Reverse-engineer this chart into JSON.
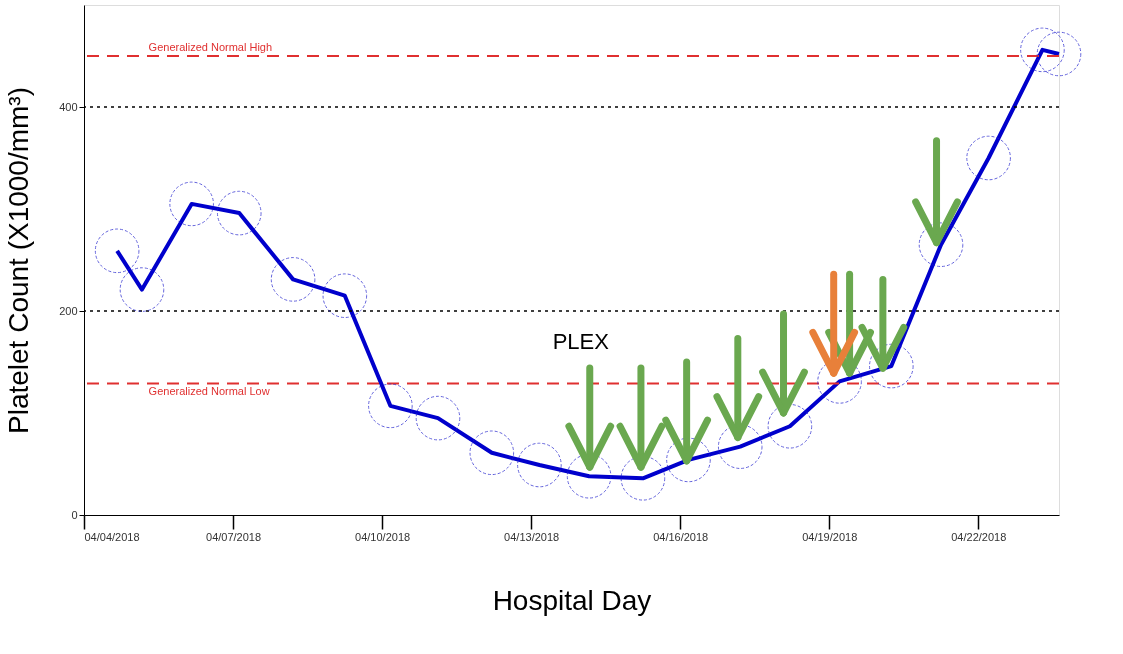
{
  "chart_data": {
    "type": "line",
    "xlabel": "Hospital Day",
    "ylabel": "Platelet Count (X1000/mm³)",
    "x": [
      "2018-04-04T16:00",
      "2018-04-05T04:00",
      "2018-04-06T04:00",
      "2018-04-07T03:00",
      "2018-04-08T05:00",
      "2018-04-09T06:00",
      "2018-04-10T04:00",
      "2018-04-11T03:00",
      "2018-04-12T05:00",
      "2018-04-13T04:00",
      "2018-04-14T04:00",
      "2018-04-15T06:00",
      "2018-04-16T04:00",
      "2018-04-17T05:00",
      "2018-04-18T05:00",
      "2018-04-19T05:00",
      "2018-04-20T06:00",
      "2018-04-21T06:00",
      "2018-04-22T05:00",
      "2018-04-23T07:00",
      "2018-04-23T15:00"
    ],
    "series": [
      {
        "color": "#0000cc",
        "values": [
          259,
          221,
          305,
          296,
          231,
          215,
          107,
          95,
          61,
          49,
          38,
          36,
          54,
          67,
          87,
          131,
          146,
          265,
          350,
          456,
          452
        ]
      }
    ],
    "marker": "circle",
    "xlim": [
      "2018-04-04",
      "2018-04-23T15:00"
    ],
    "xticks": [
      {
        "value": "2018-04-04",
        "label": "04/04/2018"
      },
      {
        "value": "2018-04-07",
        "label": "04/07/2018"
      },
      {
        "value": "2018-04-10",
        "label": "04/10/2018"
      },
      {
        "value": "2018-04-13",
        "label": "04/13/2018"
      },
      {
        "value": "2018-04-16",
        "label": "04/16/2018"
      },
      {
        "value": "2018-04-19",
        "label": "04/19/2018"
      },
      {
        "value": "2018-04-22",
        "label": "04/22/2018"
      }
    ],
    "ylim": [
      0,
      500
    ],
    "yticks": [
      0,
      200,
      400
    ],
    "grid": "y",
    "ref_lines": [
      {
        "axis": "y",
        "value": 450,
        "label": "Generalized Normal High",
        "color": "#e03030",
        "line_style": "dashed"
      },
      {
        "axis": "y",
        "value": 129,
        "label": "Generalized Normal Low",
        "color": "#e03030",
        "line_style": "dashed"
      }
    ],
    "annotations": [
      "PLEX"
    ]
  }
}
